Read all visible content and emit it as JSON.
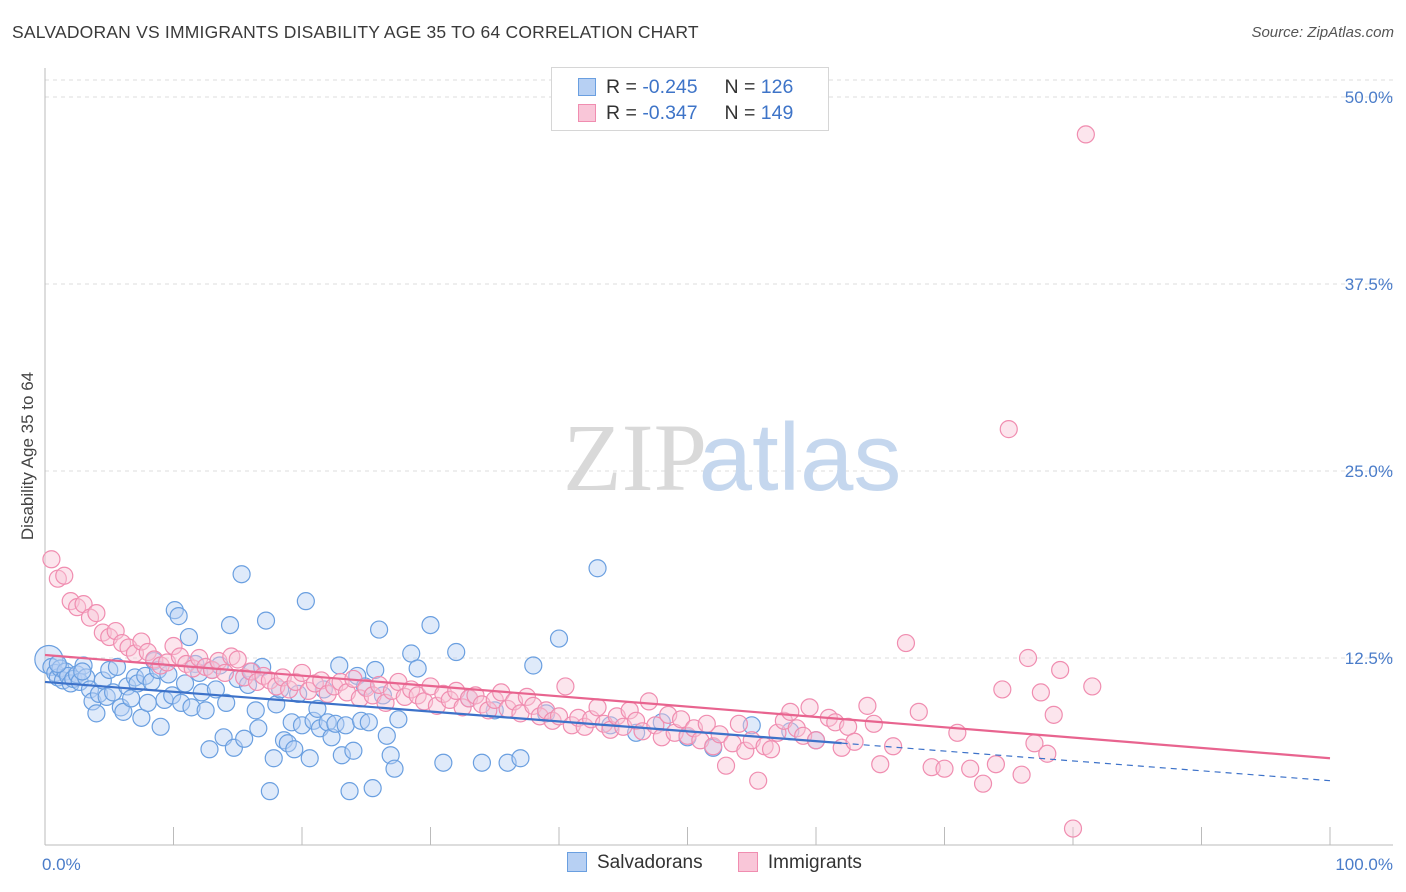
{
  "chart_data": {
    "type": "scatter",
    "title": "SALVADORAN VS IMMIGRANTS DISABILITY AGE 35 TO 64 CORRELATION CHART",
    "source": "Source: ZipAtlas.com",
    "ylabel": "Disability Age 35 to 64",
    "xlabel": "",
    "xlim": [
      0,
      100
    ],
    "ylim": [
      0,
      50
    ],
    "y_ticks": [
      12.5,
      25.0,
      37.5,
      50.0
    ],
    "y_tick_labels": [
      "12.5%",
      "25.0%",
      "37.5%",
      "50.0%"
    ],
    "x_tick_labels": [
      "0.0%",
      "100.0%"
    ],
    "watermark": {
      "zip": "ZIP",
      "atlas": "atlas"
    },
    "legend": {
      "r_label": "R =",
      "n_label": "N =",
      "entries": [
        {
          "r": "-0.245",
          "n": "126"
        },
        {
          "r": "-0.347",
          "n": "149"
        }
      ]
    },
    "series": [
      {
        "name": "Salvadorans",
        "color": "#6a9fe0",
        "fill": "#b7d0f3",
        "line_color": "#3d72c9",
        "trend": {
          "x0": 0,
          "y0": 10.9,
          "x1": 100,
          "y1": 4.3,
          "solid_until": 62
        },
        "points": [
          [
            0.3,
            12.4
          ],
          [
            0.5,
            11.9
          ],
          [
            0.8,
            11.5
          ],
          [
            1.0,
            11.2
          ],
          [
            1.2,
            11.8
          ],
          [
            1.4,
            11.0
          ],
          [
            1.6,
            11.6
          ],
          [
            1.8,
            11.3
          ],
          [
            2.0,
            10.8
          ],
          [
            2.2,
            11.1
          ],
          [
            2.5,
            11.4
          ],
          [
            2.7,
            10.9
          ],
          [
            3.0,
            12.0
          ],
          [
            3.2,
            11.2
          ],
          [
            3.5,
            10.4
          ],
          [
            3.7,
            9.6
          ],
          [
            4.0,
            8.8
          ],
          [
            4.2,
            10.1
          ],
          [
            4.5,
            11.0
          ],
          [
            4.8,
            9.9
          ],
          [
            5.0,
            11.7
          ],
          [
            5.3,
            10.2
          ],
          [
            5.6,
            11.9
          ],
          [
            5.9,
            9.2
          ],
          [
            6.1,
            8.9
          ],
          [
            6.4,
            10.6
          ],
          [
            6.7,
            9.8
          ],
          [
            7.0,
            11.2
          ],
          [
            7.2,
            10.8
          ],
          [
            7.5,
            8.5
          ],
          [
            7.8,
            11.3
          ],
          [
            8.0,
            9.5
          ],
          [
            8.3,
            10.9
          ],
          [
            8.5,
            12.3
          ],
          [
            8.8,
            11.7
          ],
          [
            9.0,
            7.9
          ],
          [
            9.3,
            9.7
          ],
          [
            9.6,
            11.4
          ],
          [
            9.9,
            10.0
          ],
          [
            10.1,
            15.7
          ],
          [
            10.4,
            15.3
          ],
          [
            10.6,
            9.5
          ],
          [
            10.9,
            10.8
          ],
          [
            11.2,
            13.9
          ],
          [
            11.4,
            9.2
          ],
          [
            11.7,
            12.1
          ],
          [
            12.0,
            11.5
          ],
          [
            12.2,
            10.2
          ],
          [
            12.5,
            9.0
          ],
          [
            12.8,
            6.4
          ],
          [
            13.0,
            11.7
          ],
          [
            13.3,
            10.4
          ],
          [
            13.6,
            12.0
          ],
          [
            13.9,
            7.2
          ],
          [
            14.1,
            9.5
          ],
          [
            14.4,
            14.7
          ],
          [
            14.7,
            6.5
          ],
          [
            15.0,
            11.1
          ],
          [
            15.3,
            18.1
          ],
          [
            15.5,
            7.1
          ],
          [
            15.8,
            10.7
          ],
          [
            16.1,
            11.6
          ],
          [
            16.4,
            9.0
          ],
          [
            16.6,
            7.8
          ],
          [
            16.9,
            11.9
          ],
          [
            17.2,
            15.0
          ],
          [
            17.5,
            3.6
          ],
          [
            17.8,
            5.8
          ],
          [
            18.0,
            9.4
          ],
          [
            18.3,
            10.4
          ],
          [
            18.6,
            7.0
          ],
          [
            18.9,
            6.8
          ],
          [
            19.2,
            8.2
          ],
          [
            19.4,
            6.4
          ],
          [
            19.7,
            10.1
          ],
          [
            20.0,
            8.0
          ],
          [
            20.3,
            16.3
          ],
          [
            20.6,
            5.8
          ],
          [
            20.9,
            8.3
          ],
          [
            21.2,
            9.1
          ],
          [
            21.4,
            7.8
          ],
          [
            21.7,
            10.4
          ],
          [
            22.0,
            8.2
          ],
          [
            22.3,
            7.2
          ],
          [
            22.6,
            8.1
          ],
          [
            22.9,
            12.0
          ],
          [
            23.1,
            6.0
          ],
          [
            23.4,
            8.0
          ],
          [
            23.7,
            3.6
          ],
          [
            24.0,
            6.3
          ],
          [
            24.3,
            11.3
          ],
          [
            24.6,
            8.3
          ],
          [
            24.9,
            10.6
          ],
          [
            25.2,
            8.2
          ],
          [
            25.5,
            3.8
          ],
          [
            25.7,
            11.7
          ],
          [
            26.0,
            14.4
          ],
          [
            26.3,
            10.0
          ],
          [
            26.6,
            7.3
          ],
          [
            26.9,
            6.0
          ],
          [
            27.2,
            5.1
          ],
          [
            27.5,
            8.4
          ],
          [
            28.5,
            12.8
          ],
          [
            29.0,
            11.8
          ],
          [
            30.0,
            14.7
          ],
          [
            31.0,
            5.5
          ],
          [
            32.0,
            12.9
          ],
          [
            33.0,
            9.8
          ],
          [
            34.0,
            5.5
          ],
          [
            35.0,
            9.0
          ],
          [
            36.0,
            5.5
          ],
          [
            37.0,
            5.8
          ],
          [
            38.0,
            12.0
          ],
          [
            39.0,
            8.8
          ],
          [
            40.0,
            13.8
          ],
          [
            43.0,
            18.5
          ],
          [
            44.0,
            8.0
          ],
          [
            46.0,
            7.5
          ],
          [
            48.0,
            8.2
          ],
          [
            50.0,
            7.2
          ],
          [
            52.0,
            6.5
          ],
          [
            55.0,
            8.0
          ],
          [
            58.0,
            7.6
          ],
          [
            60.0,
            7.0
          ],
          [
            1.0,
            12.1
          ],
          [
            2.9,
            11.6
          ]
        ]
      },
      {
        "name": "Immigrants",
        "color": "#f08db0",
        "fill": "#f9c6d8",
        "line_color": "#e8648f",
        "trend": {
          "x0": 0,
          "y0": 12.7,
          "x1": 100,
          "y1": 5.8,
          "solid_until": 100
        },
        "points": [
          [
            0.5,
            19.1
          ],
          [
            1.0,
            17.8
          ],
          [
            1.5,
            18.0
          ],
          [
            2.0,
            16.3
          ],
          [
            2.5,
            15.9
          ],
          [
            3.0,
            16.1
          ],
          [
            3.5,
            15.2
          ],
          [
            4.0,
            15.5
          ],
          [
            4.5,
            14.2
          ],
          [
            5.0,
            13.9
          ],
          [
            5.5,
            14.3
          ],
          [
            6.0,
            13.5
          ],
          [
            6.5,
            13.2
          ],
          [
            7.0,
            12.8
          ],
          [
            7.5,
            13.6
          ],
          [
            8.0,
            12.9
          ],
          [
            8.5,
            12.4
          ],
          [
            9.0,
            12.0
          ],
          [
            9.5,
            12.2
          ],
          [
            10.0,
            13.3
          ],
          [
            10.5,
            12.6
          ],
          [
            11.0,
            12.1
          ],
          [
            11.5,
            11.8
          ],
          [
            12.0,
            12.5
          ],
          [
            12.5,
            11.9
          ],
          [
            13.0,
            11.7
          ],
          [
            13.5,
            12.3
          ],
          [
            14.0,
            11.5
          ],
          [
            14.5,
            12.6
          ],
          [
            15.0,
            12.4
          ],
          [
            15.5,
            11.2
          ],
          [
            16.0,
            11.6
          ],
          [
            16.5,
            10.9
          ],
          [
            17.0,
            11.3
          ],
          [
            17.5,
            11.0
          ],
          [
            18.0,
            10.6
          ],
          [
            18.5,
            11.2
          ],
          [
            19.0,
            10.4
          ],
          [
            19.5,
            10.9
          ],
          [
            20.0,
            11.5
          ],
          [
            20.5,
            10.3
          ],
          [
            21.0,
            10.8
          ],
          [
            21.5,
            11.0
          ],
          [
            22.0,
            10.1
          ],
          [
            22.5,
            10.6
          ],
          [
            23.0,
            10.9
          ],
          [
            23.5,
            10.2
          ],
          [
            24.0,
            11.1
          ],
          [
            24.5,
            9.8
          ],
          [
            25.0,
            10.5
          ],
          [
            25.5,
            10.0
          ],
          [
            26.0,
            10.7
          ],
          [
            26.5,
            9.5
          ],
          [
            27.0,
            10.3
          ],
          [
            27.5,
            10.9
          ],
          [
            28.0,
            9.9
          ],
          [
            28.5,
            10.4
          ],
          [
            29.0,
            10.0
          ],
          [
            29.5,
            9.6
          ],
          [
            30.0,
            10.6
          ],
          [
            30.5,
            9.3
          ],
          [
            31.0,
            10.1
          ],
          [
            31.5,
            9.7
          ],
          [
            32.0,
            10.3
          ],
          [
            32.5,
            9.2
          ],
          [
            33.0,
            9.8
          ],
          [
            33.5,
            10.0
          ],
          [
            34.0,
            9.4
          ],
          [
            34.5,
            9.0
          ],
          [
            35.0,
            9.7
          ],
          [
            35.5,
            10.2
          ],
          [
            36.0,
            9.1
          ],
          [
            36.5,
            9.6
          ],
          [
            37.0,
            8.8
          ],
          [
            37.5,
            9.9
          ],
          [
            38.0,
            9.3
          ],
          [
            38.5,
            8.6
          ],
          [
            39.0,
            9.0
          ],
          [
            39.5,
            8.3
          ],
          [
            40.0,
            8.6
          ],
          [
            40.5,
            10.6
          ],
          [
            41.0,
            8.0
          ],
          [
            41.5,
            8.5
          ],
          [
            42.0,
            7.9
          ],
          [
            42.5,
            8.4
          ],
          [
            43.0,
            9.2
          ],
          [
            43.5,
            8.1
          ],
          [
            44.0,
            7.7
          ],
          [
            44.5,
            8.6
          ],
          [
            45.0,
            7.9
          ],
          [
            45.5,
            9.0
          ],
          [
            46.0,
            8.3
          ],
          [
            46.5,
            7.6
          ],
          [
            47.0,
            9.6
          ],
          [
            47.5,
            8.0
          ],
          [
            48.0,
            7.2
          ],
          [
            48.5,
            8.7
          ],
          [
            49.0,
            7.5
          ],
          [
            49.5,
            8.4
          ],
          [
            50.0,
            7.3
          ],
          [
            50.5,
            7.8
          ],
          [
            51.0,
            7.0
          ],
          [
            51.5,
            8.1
          ],
          [
            52.0,
            6.6
          ],
          [
            52.5,
            7.4
          ],
          [
            53.0,
            5.3
          ],
          [
            53.5,
            6.8
          ],
          [
            54.0,
            8.1
          ],
          [
            54.5,
            6.3
          ],
          [
            55.0,
            7.0
          ],
          [
            55.5,
            4.3
          ],
          [
            56.0,
            6.6
          ],
          [
            56.5,
            6.4
          ],
          [
            57.0,
            7.5
          ],
          [
            57.5,
            8.3
          ],
          [
            58.0,
            8.9
          ],
          [
            58.5,
            7.8
          ],
          [
            59.0,
            7.3
          ],
          [
            59.5,
            9.2
          ],
          [
            60.0,
            7.0
          ],
          [
            61.0,
            8.5
          ],
          [
            61.5,
            8.2
          ],
          [
            62.0,
            6.5
          ],
          [
            62.5,
            7.9
          ],
          [
            63.0,
            6.9
          ],
          [
            64.0,
            9.3
          ],
          [
            64.5,
            8.1
          ],
          [
            65.0,
            5.4
          ],
          [
            66.0,
            6.6
          ],
          [
            67.0,
            13.5
          ],
          [
            68.0,
            8.9
          ],
          [
            69.0,
            5.2
          ],
          [
            70.0,
            5.1
          ],
          [
            71.0,
            7.5
          ],
          [
            72.0,
            5.1
          ],
          [
            73.0,
            4.1
          ],
          [
            74.0,
            5.4
          ],
          [
            74.5,
            10.4
          ],
          [
            75.0,
            27.8
          ],
          [
            76.0,
            4.7
          ],
          [
            76.5,
            12.5
          ],
          [
            77.0,
            6.8
          ],
          [
            77.5,
            10.2
          ],
          [
            78.0,
            6.1
          ],
          [
            78.5,
            8.7
          ],
          [
            79.0,
            11.7
          ],
          [
            80.0,
            1.1
          ],
          [
            81.0,
            47.5
          ],
          [
            81.5,
            10.6
          ]
        ]
      }
    ]
  }
}
